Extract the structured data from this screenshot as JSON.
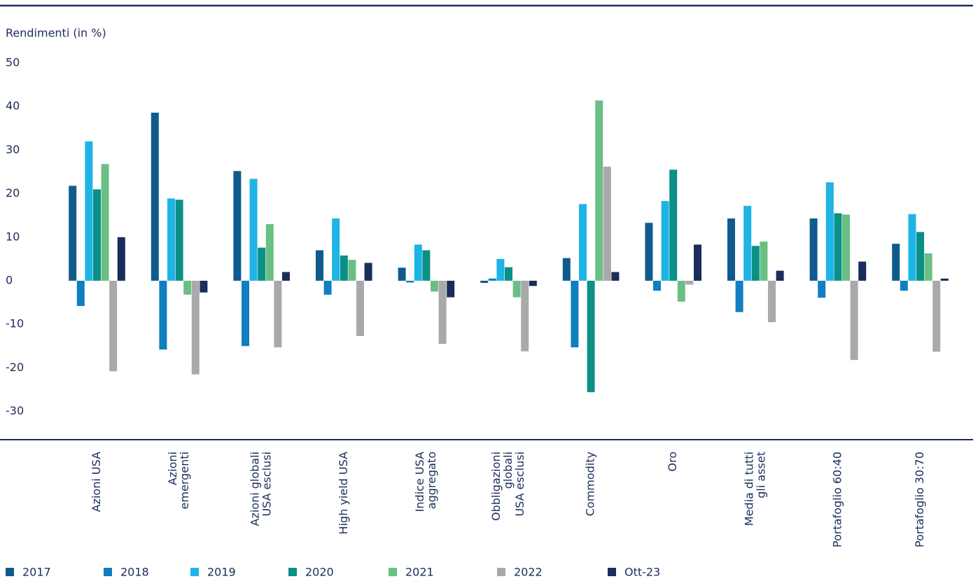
{
  "chart_data": {
    "type": "bar",
    "y_label": "Rendimenti (in %)",
    "categories": [
      [
        "Azioni USA"
      ],
      [
        "Azioni",
        "emergenti"
      ],
      [
        "Azioni globali",
        "USA esclusi"
      ],
      [
        "High yield USA"
      ],
      [
        "Indice USA",
        "aggregato"
      ],
      [
        "Obbligazioni",
        "globali",
        "USA esclusi"
      ],
      [
        "Commodity"
      ],
      [
        "Oro"
      ],
      [
        "Media di tutti",
        "gli asset"
      ],
      [
        "Portafoglio 60:40"
      ],
      [
        "Portafoglio 30:70"
      ]
    ],
    "series": [
      {
        "name": "2017",
        "color": "#105b8c",
        "values": [
          21.8,
          38.6,
          25.2,
          7,
          3,
          -0.5,
          5.2,
          13.3,
          14.3,
          14.3,
          8.5
        ]
      },
      {
        "name": "2018",
        "color": "#0f7fc0",
        "values": [
          -5.8,
          -15.8,
          -15,
          -3.2,
          -0.4,
          0.5,
          -15.3,
          -2.3,
          -7.2,
          -3.9,
          -2.3
        ]
      },
      {
        "name": "2019",
        "color": "#1fb4e6",
        "values": [
          32,
          18.9,
          23.4,
          14.3,
          8.3,
          5,
          17.6,
          18.3,
          17.2,
          22.6,
          15.3
        ]
      },
      {
        "name": "2020",
        "color": "#0a9086",
        "values": [
          21,
          18.6,
          7.6,
          5.8,
          7,
          3.1,
          -25.6,
          25.5,
          8,
          15.5,
          11.2
        ]
      },
      {
        "name": "2021",
        "color": "#6bbf84",
        "values": [
          26.8,
          -3.2,
          13,
          4.8,
          -2.5,
          -3.8,
          41.4,
          -4.8,
          9,
          15.2,
          6.3
        ]
      },
      {
        "name": "2022",
        "color": "#a9a9a9",
        "values": [
          -20.8,
          -21.5,
          -15.3,
          -12.7,
          -14.5,
          -16.2,
          26.2,
          -0.9,
          -9.5,
          -18.2,
          -16.3
        ]
      },
      {
        "name": "Ott-23",
        "color": "#1b2d5a",
        "values": [
          10,
          -2.7,
          2,
          4.1,
          -3.8,
          -1.2,
          2,
          8.3,
          2.3,
          4.4,
          0.5
        ]
      }
    ],
    "ylim": [
      -36.5,
      50
    ],
    "yticks": [
      50,
      40,
      30,
      20,
      10,
      0,
      -10,
      -20,
      -30
    ],
    "grid": false
  }
}
